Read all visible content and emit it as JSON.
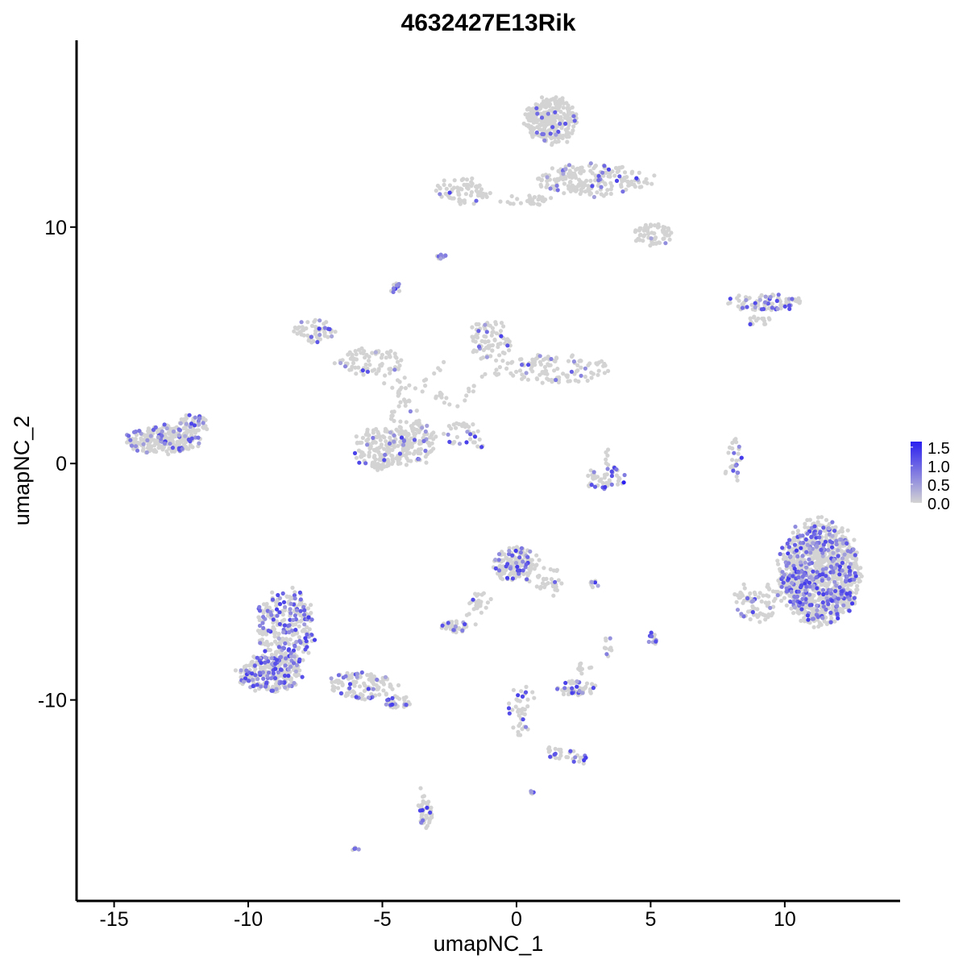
{
  "chart_data": {
    "type": "scatter",
    "title": "4632427E13Rik",
    "xlabel": "umapNC_1",
    "ylabel": "umapNC_2",
    "xlim": [
      -16.4,
      14.3
    ],
    "ylim": [
      -18.5,
      17.9
    ],
    "x_ticks": [
      -15,
      -10,
      -5,
      0,
      5,
      10
    ],
    "x_tick_labels": [
      "-15",
      "-10",
      "-5",
      "0",
      "5",
      "10"
    ],
    "y_ticks": [
      -10,
      0,
      10
    ],
    "y_tick_labels": [
      "-10",
      "0",
      "10"
    ],
    "grid": false,
    "color_scale": {
      "low": "#d3d3d3",
      "high": "#2a1ff0",
      "min": 0,
      "max": 1.65,
      "ticks": [
        0.0,
        0.5,
        1.0,
        1.5
      ],
      "tick_labels": [
        "0.0",
        "0.5",
        "1.0",
        "1.5"
      ],
      "legend_position": "right"
    },
    "clusters": [
      {
        "cx": 1.3,
        "cy": 14.5,
        "rx": 1.0,
        "ry": 1.0,
        "n": 260,
        "expr_frac": 0.07
      },
      {
        "cx": 2.8,
        "cy": 12.0,
        "rx": 2.2,
        "ry": 0.7,
        "n": 200,
        "expr_frac": 0.1
      },
      {
        "cx": 5.1,
        "cy": 9.7,
        "rx": 0.7,
        "ry": 0.5,
        "n": 60,
        "expr_frac": 0.04
      },
      {
        "cx": -2.0,
        "cy": 11.5,
        "rx": 1.0,
        "ry": 0.6,
        "n": 70,
        "expr_frac": 0.05
      },
      {
        "cx": 0.4,
        "cy": 11.1,
        "rx": 1.0,
        "ry": 0.25,
        "n": 30,
        "expr_frac": 0.0
      },
      {
        "cx": -2.8,
        "cy": 8.8,
        "rx": 0.2,
        "ry": 0.15,
        "n": 12,
        "expr_frac": 0.6
      },
      {
        "cx": -4.5,
        "cy": 7.4,
        "rx": 0.2,
        "ry": 0.25,
        "n": 12,
        "expr_frac": 0.6
      },
      {
        "cx": 9.2,
        "cy": 6.8,
        "rx": 1.5,
        "ry": 0.35,
        "n": 90,
        "expr_frac": 0.25
      },
      {
        "cx": 9.1,
        "cy": 6.0,
        "rx": 0.6,
        "ry": 0.3,
        "n": 15,
        "expr_frac": 0.05
      },
      {
        "cx": -7.5,
        "cy": 5.6,
        "rx": 0.8,
        "ry": 0.5,
        "n": 55,
        "expr_frac": 0.15
      },
      {
        "cx": -5.4,
        "cy": 4.3,
        "rx": 1.3,
        "ry": 0.6,
        "n": 80,
        "expr_frac": 0.05
      },
      {
        "cx": -1.0,
        "cy": 5.2,
        "rx": 0.8,
        "ry": 0.9,
        "n": 80,
        "expr_frac": 0.07
      },
      {
        "cx": 1.3,
        "cy": 4.0,
        "rx": 2.2,
        "ry": 0.6,
        "n": 120,
        "expr_frac": 0.08
      },
      {
        "cx": -4.2,
        "cy": 2.0,
        "rx": 0.6,
        "ry": 1.8,
        "n": 50,
        "expr_frac": 0.1
      },
      {
        "cx": -5.0,
        "cy": 0.6,
        "rx": 1.1,
        "ry": 0.9,
        "n": 170,
        "expr_frac": 0.08
      },
      {
        "cx": -3.7,
        "cy": 0.9,
        "rx": 0.7,
        "ry": 0.9,
        "n": 80,
        "expr_frac": 0.1
      },
      {
        "cx": -2.0,
        "cy": 1.3,
        "rx": 0.8,
        "ry": 0.5,
        "n": 25,
        "expr_frac": 0.25
      },
      {
        "cx": -13.2,
        "cy": 1.0,
        "rx": 1.4,
        "ry": 0.6,
        "n": 260,
        "expr_frac": 0.2
      },
      {
        "cx": -12.0,
        "cy": 1.7,
        "rx": 0.6,
        "ry": 0.4,
        "n": 50,
        "expr_frac": 0.2
      },
      {
        "cx": 3.2,
        "cy": -0.6,
        "rx": 0.9,
        "ry": 0.5,
        "n": 45,
        "expr_frac": 0.2
      },
      {
        "cx": 8.2,
        "cy": 0.2,
        "rx": 0.2,
        "ry": 0.9,
        "n": 20,
        "expr_frac": 0.4
      },
      {
        "cx": 11.3,
        "cy": -4.6,
        "rx": 1.5,
        "ry": 2.2,
        "n": 1100,
        "expr_frac": 0.24
      },
      {
        "cx": 9.0,
        "cy": -5.8,
        "rx": 0.9,
        "ry": 0.9,
        "n": 80,
        "expr_frac": 0.12
      },
      {
        "cx": 0.0,
        "cy": -4.3,
        "rx": 0.9,
        "ry": 0.8,
        "n": 150,
        "expr_frac": 0.25
      },
      {
        "cx": 1.2,
        "cy": -5.0,
        "rx": 0.5,
        "ry": 0.6,
        "n": 30,
        "expr_frac": 0.15
      },
      {
        "cx": -1.4,
        "cy": -6.1,
        "rx": 0.5,
        "ry": 0.7,
        "n": 20,
        "expr_frac": 0.1
      },
      {
        "cx": -2.3,
        "cy": -6.9,
        "rx": 0.5,
        "ry": 0.25,
        "n": 40,
        "expr_frac": 0.25
      },
      {
        "cx": 2.9,
        "cy": -5.1,
        "rx": 0.2,
        "ry": 0.15,
        "n": 8,
        "expr_frac": 0.5
      },
      {
        "cx": -8.6,
        "cy": -6.9,
        "rx": 1.1,
        "ry": 1.6,
        "n": 300,
        "expr_frac": 0.32
      },
      {
        "cx": -9.2,
        "cy": -8.9,
        "rx": 1.2,
        "ry": 0.8,
        "n": 260,
        "expr_frac": 0.28
      },
      {
        "cx": -5.8,
        "cy": -9.4,
        "rx": 1.3,
        "ry": 0.6,
        "n": 110,
        "expr_frac": 0.18
      },
      {
        "cx": -4.4,
        "cy": -10.1,
        "rx": 0.5,
        "ry": 0.25,
        "n": 30,
        "expr_frac": 0.2
      },
      {
        "cx": 2.2,
        "cy": -9.5,
        "rx": 0.8,
        "ry": 0.35,
        "n": 60,
        "expr_frac": 0.25
      },
      {
        "cx": 2.5,
        "cy": -8.6,
        "rx": 0.3,
        "ry": 0.3,
        "n": 10,
        "expr_frac": 0.2
      },
      {
        "cx": 3.4,
        "cy": -7.8,
        "rx": 0.2,
        "ry": 0.5,
        "n": 10,
        "expr_frac": 0.2
      },
      {
        "cx": 5.1,
        "cy": -7.4,
        "rx": 0.2,
        "ry": 0.3,
        "n": 12,
        "expr_frac": 0.5
      },
      {
        "cx": 0.1,
        "cy": -10.5,
        "rx": 0.4,
        "ry": 1.3,
        "n": 35,
        "expr_frac": 0.15
      },
      {
        "cx": 1.5,
        "cy": -12.3,
        "rx": 0.8,
        "ry": 0.3,
        "n": 18,
        "expr_frac": 0.15
      },
      {
        "cx": 2.4,
        "cy": -12.5,
        "rx": 0.3,
        "ry": 0.2,
        "n": 10,
        "expr_frac": 0.3
      },
      {
        "cx": -3.4,
        "cy": -14.8,
        "rx": 0.25,
        "ry": 0.6,
        "n": 35,
        "expr_frac": 0.2
      },
      {
        "cx": 0.6,
        "cy": -13.9,
        "rx": 0.1,
        "ry": 0.1,
        "n": 5,
        "expr_frac": 0.6
      },
      {
        "cx": -6.0,
        "cy": -16.3,
        "rx": 0.15,
        "ry": 0.1,
        "n": 5,
        "expr_frac": 0.6
      }
    ],
    "streaks": [
      {
        "x0": -2.0,
        "y0": 1.7,
        "x1": -1.3,
        "y1": 0.7,
        "n": 14
      },
      {
        "x0": -5.0,
        "y0": 3.6,
        "x1": -4.0,
        "y1": 2.6,
        "n": 10
      },
      {
        "x0": -3.2,
        "y0": 3.4,
        "x1": -2.4,
        "y1": 2.4,
        "n": 10
      },
      {
        "x0": -1.2,
        "y0": 3.8,
        "x1": -2.3,
        "y1": 2.4,
        "n": 10
      },
      {
        "x0": -2.6,
        "y0": 4.4,
        "x1": -3.6,
        "y1": 3.2,
        "n": 8
      },
      {
        "x0": 3.5,
        "y0": 0.8,
        "x1": 3.3,
        "y1": -0.2,
        "n": 6
      },
      {
        "x0": -0.9,
        "y0": -5.2,
        "x1": -1.9,
        "y1": -6.5,
        "n": 8
      },
      {
        "x0": 8.0,
        "y0": 0.9,
        "x1": 7.8,
        "y1": -0.8,
        "n": 8
      },
      {
        "x0": 0.6,
        "y0": -9.8,
        "x1": 0.0,
        "y1": -11.9,
        "n": 8
      },
      {
        "x0": 1.2,
        "y0": -12.1,
        "x1": 2.4,
        "y1": -12.6,
        "n": 6
      },
      {
        "x0": -3.5,
        "y0": -13.8,
        "x1": -3.3,
        "y1": -15.3,
        "n": 8
      }
    ],
    "highlighted_points": [
      {
        "x": 4.0,
        "y": -0.8,
        "expr": 1.65
      },
      {
        "x": -1.3,
        "y": 0.7,
        "expr": 1.3
      },
      {
        "x": 3.3,
        "y": -1.0,
        "expr": 1.4
      },
      {
        "x": 2.8,
        "y": -0.9,
        "expr": 1.2
      },
      {
        "x": -3.8,
        "y": 1.0,
        "expr": 1.1
      }
    ]
  }
}
